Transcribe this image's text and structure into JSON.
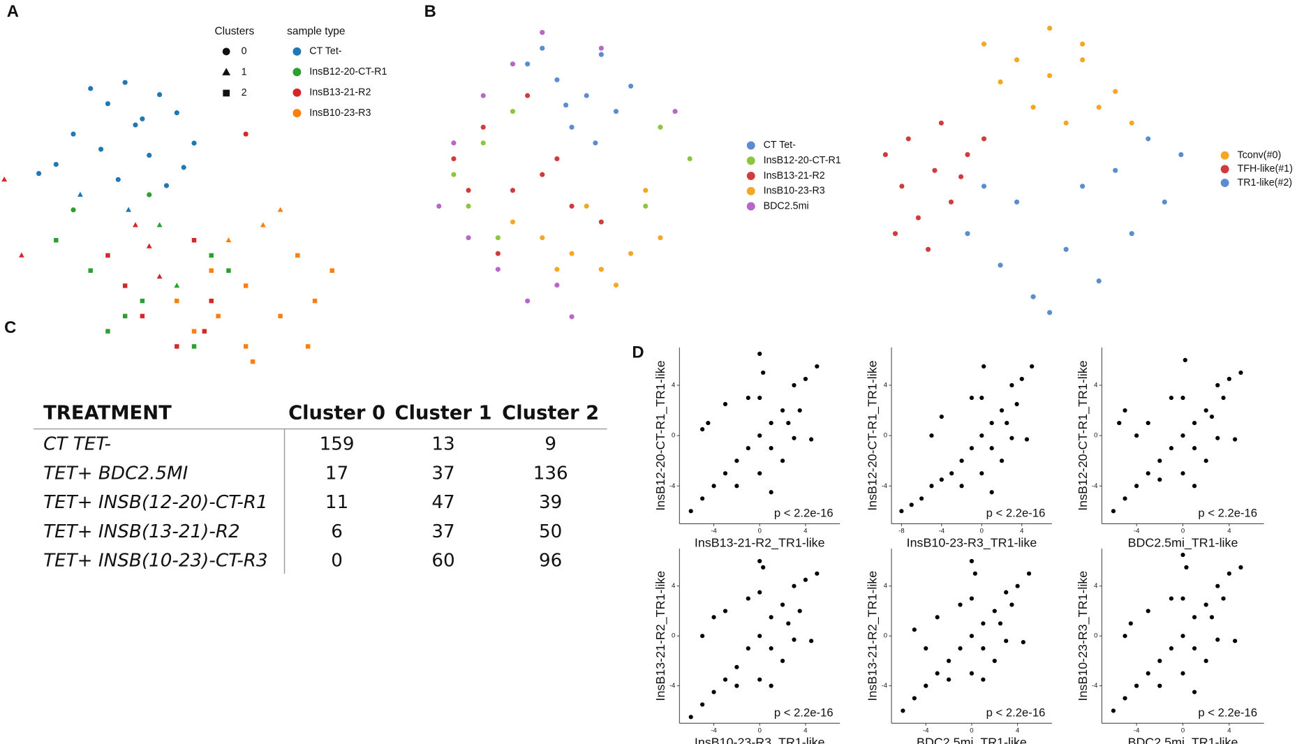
{
  "panel_labels": [
    "A",
    "B",
    "C",
    "D"
  ],
  "chart_data": [
    {
      "type": "scatter",
      "legend_title": "sample type",
      "cluster_title": "Clusters",
      "clusters": [
        "0",
        "1",
        "2"
      ],
      "xlim": [
        0,
        100
      ],
      "ylim": [
        0,
        100
      ],
      "series": [
        {
          "name": "CT Tet-",
          "color": "#1f77b4",
          "x": [
            25,
            30,
            35,
            40,
            45,
            20,
            28,
            38,
            50,
            15,
            33,
            42,
            55,
            22,
            47,
            10,
            36,
            52
          ],
          "y": [
            90,
            85,
            92,
            80,
            88,
            75,
            70,
            78,
            82,
            65,
            60,
            68,
            72,
            55,
            58,
            62,
            50,
            64
          ],
          "cluster": [
            0,
            0,
            0,
            0,
            0,
            0,
            0,
            0,
            0,
            0,
            0,
            0,
            0,
            1,
            0,
            0,
            1,
            0
          ]
        },
        {
          "name": "InsB12-20-CT-R1",
          "color": "#2ca02c",
          "x": [
            15,
            25,
            40,
            60,
            35,
            50,
            45,
            30,
            55,
            65,
            20,
            42
          ],
          "y": [
            40,
            30,
            20,
            35,
            15,
            25,
            45,
            10,
            5,
            30,
            50,
            55
          ],
          "cluster": [
            2,
            2,
            2,
            2,
            2,
            1,
            1,
            2,
            2,
            2,
            0,
            0
          ]
        },
        {
          "name": "InsB13-21-R2",
          "color": "#d62728",
          "x": [
            0,
            5,
            30,
            35,
            45,
            40,
            55,
            50,
            38,
            60,
            70,
            42,
            58
          ],
          "y": [
            60,
            35,
            35,
            25,
            28,
            15,
            40,
            5,
            45,
            20,
            75,
            38,
            10
          ],
          "cluster": [
            1,
            1,
            2,
            2,
            1,
            2,
            2,
            2,
            1,
            2,
            0,
            1,
            2
          ]
        },
        {
          "name": "InsB10-23-R3",
          "color": "#ff7f0e",
          "x": [
            50,
            60,
            70,
            80,
            90,
            65,
            75,
            85,
            55,
            70,
            80,
            95,
            62,
            88,
            72
          ],
          "y": [
            20,
            30,
            25,
            15,
            20,
            40,
            45,
            35,
            10,
            5,
            50,
            30,
            15,
            5,
            0
          ],
          "cluster": [
            2,
            2,
            2,
            2,
            2,
            1,
            1,
            2,
            2,
            2,
            1,
            2,
            2,
            2,
            2
          ]
        }
      ]
    },
    {
      "type": "scatter",
      "xlim": [
        0,
        100
      ],
      "ylim": [
        0,
        100
      ],
      "series": [
        {
          "name": "CT Tet-",
          "color": "#5b8bd0",
          "x": [
            35,
            45,
            55,
            65,
            50,
            40,
            60,
            70,
            48,
            58
          ],
          "y": [
            85,
            80,
            75,
            70,
            65,
            90,
            88,
            78,
            72,
            60
          ]
        },
        {
          "name": "InsB12-20-CT-R1",
          "color": "#8cc63f",
          "x": [
            10,
            20,
            30,
            80,
            90,
            15,
            25,
            60,
            75,
            40
          ],
          "y": [
            50,
            60,
            70,
            65,
            55,
            40,
            30,
            20,
            40,
            95
          ]
        },
        {
          "name": "InsB13-21-R2",
          "color": "#d13b3b",
          "x": [
            10,
            20,
            30,
            40,
            50,
            60,
            35,
            25,
            45,
            15
          ],
          "y": [
            55,
            65,
            45,
            50,
            40,
            35,
            75,
            25,
            55,
            45
          ]
        },
        {
          "name": "InsB10-23-R3",
          "color": "#f5a623",
          "x": [
            30,
            40,
            50,
            60,
            70,
            80,
            55,
            65,
            45,
            75
          ],
          "y": [
            35,
            30,
            25,
            20,
            25,
            30,
            40,
            15,
            20,
            45
          ]
        },
        {
          "name": "BDC2.5mi",
          "color": "#b767c8",
          "x": [
            5,
            15,
            25,
            35,
            20,
            30,
            40,
            50,
            85,
            10,
            60,
            45
          ],
          "y": [
            40,
            30,
            20,
            10,
            75,
            85,
            95,
            5,
            70,
            60,
            90,
            15
          ]
        }
      ]
    },
    {
      "type": "scatter",
      "xlim": [
        0,
        100
      ],
      "ylim": [
        0,
        100
      ],
      "series": [
        {
          "name": "Tconv(#0)",
          "color": "#f5a623",
          "x": [
            35,
            45,
            55,
            65,
            75,
            50,
            60,
            70,
            40,
            80,
            55,
            65
          ],
          "y": [
            90,
            85,
            80,
            85,
            75,
            70,
            65,
            70,
            78,
            65,
            95,
            90
          ]
        },
        {
          "name": "TFH-like(#1)",
          "color": "#d13b3b",
          "x": [
            5,
            10,
            15,
            20,
            25,
            30,
            12,
            22,
            35,
            8,
            18,
            28
          ],
          "y": [
            55,
            45,
            35,
            50,
            40,
            55,
            60,
            65,
            60,
            30,
            25,
            48
          ]
        },
        {
          "name": "TR1-like(#2)",
          "color": "#5b8bd0",
          "x": [
            30,
            40,
            50,
            60,
            70,
            80,
            90,
            45,
            55,
            65,
            75,
            85,
            35,
            95
          ],
          "y": [
            30,
            20,
            10,
            25,
            15,
            30,
            40,
            40,
            5,
            45,
            50,
            60,
            45,
            55
          ]
        }
      ]
    },
    {
      "type": "scatter",
      "x_label": "InsB13-21-R2_TR1-like",
      "y_label": "InsB12-20-CT-R1_TR1-like",
      "annotation": "p < 2.2e-16",
      "xlim": [
        -7,
        7
      ],
      "ylim": [
        -7,
        7
      ],
      "xticks": [
        -4,
        0,
        4
      ],
      "yticks": [
        -4,
        0,
        4
      ],
      "series": [
        {
          "color": "#000000",
          "x": [
            -6,
            -5,
            -4,
            -3,
            -2,
            -4.5,
            -3,
            -1,
            0,
            1,
            2,
            -1,
            0,
            1,
            2,
            3,
            4,
            5,
            3,
            4.5,
            0,
            0.3,
            0,
            -2,
            1,
            2.5,
            -5,
            3.5
          ],
          "y": [
            -6,
            -5,
            -4,
            -3,
            -2,
            1,
            2.5,
            -1,
            0,
            1,
            -2,
            3,
            -3,
            -1,
            2,
            4,
            4.5,
            5.5,
            -0.2,
            -0.3,
            3,
            5,
            6.5,
            -4,
            -4.5,
            1,
            0.5,
            2
          ]
        }
      ]
    },
    {
      "type": "scatter",
      "x_label": "InsB10-23-R3_TR1-like",
      "y_label": "InsB12-20-CT-R1_TR1-like",
      "annotation": "p < 2.2e-16",
      "xlim": [
        -9,
        7
      ],
      "ylim": [
        -7,
        7
      ],
      "xticks": [
        -8,
        -4,
        0,
        4
      ],
      "yticks": [
        -4,
        0,
        4
      ],
      "series": [
        {
          "color": "#000000",
          "x": [
            -8,
            -7,
            -6,
            -5,
            -4,
            -3,
            -2,
            -4,
            -1,
            0,
            1,
            2,
            -1,
            0,
            1,
            2,
            3,
            4,
            5,
            3,
            4.5,
            0,
            0.2,
            -2,
            1,
            2.5,
            -5,
            3.5
          ],
          "y": [
            -6,
            -5.5,
            -5,
            -4,
            -3.5,
            -3,
            -2,
            1.5,
            -1,
            0,
            1,
            -2,
            3,
            -3,
            -1,
            2,
            4,
            4.5,
            5.5,
            -0.2,
            -0.3,
            3,
            5.5,
            -4,
            -4.5,
            1,
            0,
            2.5
          ]
        }
      ]
    },
    {
      "type": "scatter",
      "x_label": "BDC2.5mi_TR1-like",
      "y_label": "InsB12-20-CT-R1_TR1-like",
      "annotation": "p < 2.2e-16",
      "xlim": [
        -7,
        7
      ],
      "ylim": [
        -7,
        7
      ],
      "xticks": [
        -4,
        0,
        4
      ],
      "yticks": [
        -4,
        0,
        4
      ],
      "series": [
        {
          "color": "#000000",
          "x": [
            -6,
            -5,
            -4,
            -3,
            -2,
            -5,
            -4,
            -1,
            0,
            1,
            2,
            -1,
            0,
            1,
            2,
            3,
            4,
            5,
            3,
            4.5,
            0,
            0.2,
            -2,
            -3,
            1,
            2.5,
            -5.5,
            3.5
          ],
          "y": [
            -6,
            -5,
            -4,
            -3,
            -2,
            2,
            0,
            -1,
            0,
            1,
            -2,
            3,
            -3,
            -1,
            2,
            4,
            4.5,
            5,
            -0.2,
            -0.3,
            3,
            6,
            -3.5,
            1,
            -4,
            1.5,
            1,
            3
          ]
        }
      ]
    },
    {
      "type": "scatter",
      "x_label": "InsB10-23-R3_TR1-like",
      "y_label": "InsB13-21-R2_TR1-like",
      "annotation": "p < 2.2e-16",
      "xlim": [
        -7,
        7
      ],
      "ylim": [
        -7,
        7
      ],
      "xticks": [
        -4,
        0,
        4
      ],
      "yticks": [
        -4,
        0,
        4
      ],
      "series": [
        {
          "color": "#000000",
          "x": [
            -6,
            -5,
            -4,
            -3,
            -2,
            -4,
            -3,
            -1,
            0,
            1,
            2,
            -1,
            0,
            1,
            2,
            3,
            4,
            5,
            3,
            4.5,
            0,
            0.3,
            0,
            -2,
            1,
            2.5,
            -5,
            3.5
          ],
          "y": [
            -6.5,
            -5.5,
            -4.5,
            -3.5,
            -2.5,
            1.5,
            2,
            -1,
            0,
            1.5,
            -2,
            3,
            -3.5,
            -1,
            2.5,
            4,
            4.5,
            5,
            -0.3,
            -0.4,
            3.5,
            5.5,
            6,
            -4,
            -4,
            1,
            0,
            2
          ]
        }
      ]
    },
    {
      "type": "scatter",
      "x_label": "BDC2.5mi_TR1-like",
      "y_label": "InsB13-21-R2_TR1-like",
      "annotation": "p < 2.2e-16",
      "xlim": [
        -7,
        7
      ],
      "ylim": [
        -7,
        7
      ],
      "xticks": [
        -4,
        0,
        4
      ],
      "yticks": [
        -4,
        0,
        4
      ],
      "series": [
        {
          "color": "#000000",
          "x": [
            -6,
            -5,
            -4,
            -3,
            -2,
            -5,
            -3,
            -1,
            0,
            1,
            2,
            -1,
            0,
            1,
            2,
            3,
            4,
            5,
            3,
            4.5,
            0,
            0.3,
            0,
            -2,
            1,
            2.5,
            -4,
            3.5
          ],
          "y": [
            -6,
            -5,
            -4,
            -3,
            -2,
            0.5,
            1.5,
            -1,
            0,
            1,
            -2,
            2.5,
            -3,
            -1,
            2,
            3.5,
            4,
            5,
            -0.4,
            -0.5,
            3,
            5,
            6,
            -3.5,
            -3.5,
            1,
            -1,
            2.5
          ]
        }
      ]
    },
    {
      "type": "scatter",
      "x_label": "BDC2.5mi_TR1-like",
      "y_label": "InsB10-23-R3_TR1-like",
      "annotation": "p < 2.2e-16",
      "xlim": [
        -7,
        7
      ],
      "ylim": [
        -7,
        7
      ],
      "xticks": [
        -4,
        0,
        4
      ],
      "yticks": [
        -4,
        0,
        4
      ],
      "series": [
        {
          "color": "#000000",
          "x": [
            -6,
            -5,
            -4,
            -3,
            -2,
            -4.5,
            -3,
            -1,
            0,
            1,
            2,
            -1,
            0,
            1,
            2,
            3,
            4,
            5,
            3,
            4.5,
            0,
            0.3,
            0,
            -2,
            1,
            2.5,
            -5,
            3.5
          ],
          "y": [
            -6,
            -5,
            -4,
            -3,
            -2,
            1,
            2,
            -1,
            0,
            1.5,
            -2,
            3,
            -3,
            -1,
            2.5,
            4,
            5,
            5.5,
            -0.3,
            -0.4,
            3,
            5.5,
            6.5,
            -4,
            -4.5,
            1.5,
            0,
            3
          ]
        }
      ]
    }
  ],
  "table": {
    "header": [
      "TREATMENT",
      "Cluster 0",
      "Cluster 1",
      "Cluster 2"
    ],
    "rows": [
      [
        "CT TET-",
        159,
        13,
        9
      ],
      [
        "TET+ BDC2.5MI",
        17,
        37,
        136
      ],
      [
        "TET+ INSB(12-20)-CT-R1",
        11,
        47,
        39
      ],
      [
        "TET+ INSB(13-21)-R2",
        6,
        37,
        50
      ],
      [
        "TET+ INSB(10-23)-CT-R3",
        0,
        60,
        96
      ]
    ]
  }
}
